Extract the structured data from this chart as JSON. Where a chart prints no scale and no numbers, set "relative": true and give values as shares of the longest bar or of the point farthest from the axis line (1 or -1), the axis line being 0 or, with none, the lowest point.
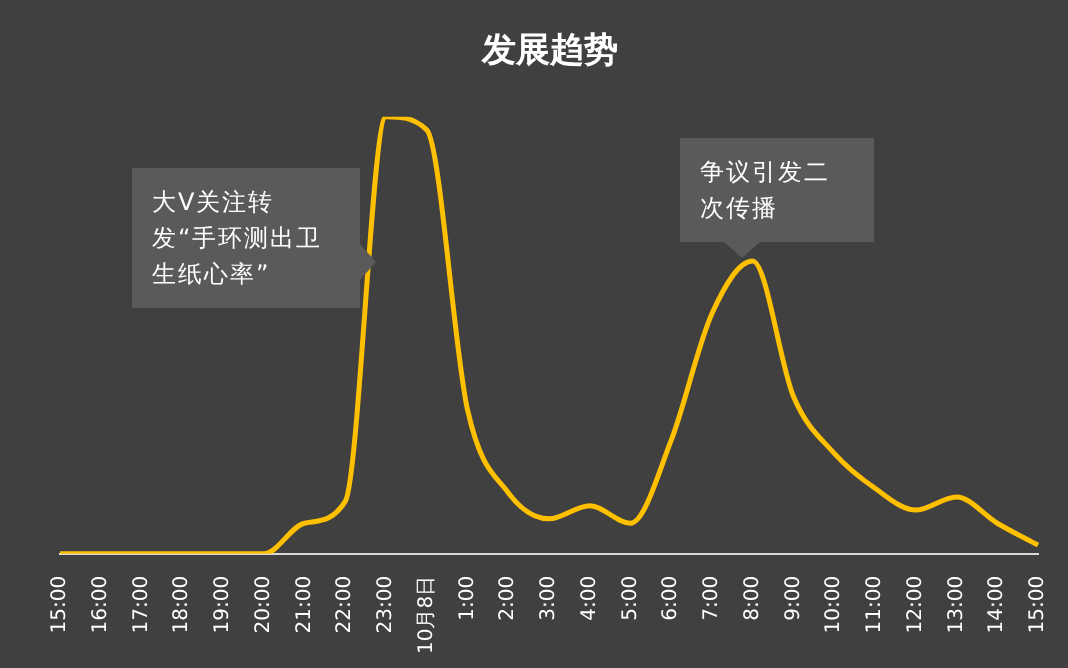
{
  "chart_data": {
    "type": "line",
    "title": "发展趋势",
    "relative": true,
    "categories": [
      "15:00",
      "16:00",
      "17:00",
      "18:00",
      "19:00",
      "20:00",
      "21:00",
      "22:00",
      "23:00",
      "10月8日",
      "1:00",
      "2:00",
      "3:00",
      "4:00",
      "5:00",
      "6:00",
      "7:00",
      "8:00",
      "9:00",
      "10:00",
      "11:00",
      "12:00",
      "13:00",
      "14:00",
      "15:00"
    ],
    "series": [
      {
        "color": "#ffc000",
        "values": [
          0,
          0,
          0,
          0,
          0,
          0,
          0.07,
          0.12,
          1,
          0.97,
          0.33,
          0.14,
          0.08,
          0.11,
          0.07,
          0.26,
          0.55,
          0.67,
          0.36,
          0.23,
          0.15,
          0.1,
          0.13,
          0.07,
          0.02
        ]
      }
    ],
    "annotations": [
      "大V关注转发“手环测出卫生纸心率”",
      "争议引发二次传播"
    ],
    "grid": false,
    "legend": false,
    "marker": "none",
    "line_style": "solid"
  }
}
